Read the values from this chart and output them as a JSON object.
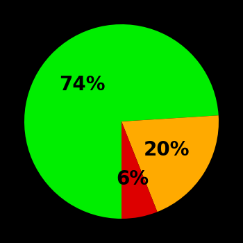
{
  "slices": [
    74,
    20,
    6
  ],
  "colors": [
    "#00ee00",
    "#ffaa00",
    "#dd0000"
  ],
  "labels": [
    "74%",
    "20%",
    "6%"
  ],
  "background_color": "#000000",
  "text_color": "#000000",
  "startangle": -90,
  "figsize": [
    3.5,
    3.5
  ],
  "dpi": 100,
  "label_fontsize": 20,
  "label_fontweight": "bold",
  "label_radii": [
    0.55,
    0.55,
    0.6
  ]
}
